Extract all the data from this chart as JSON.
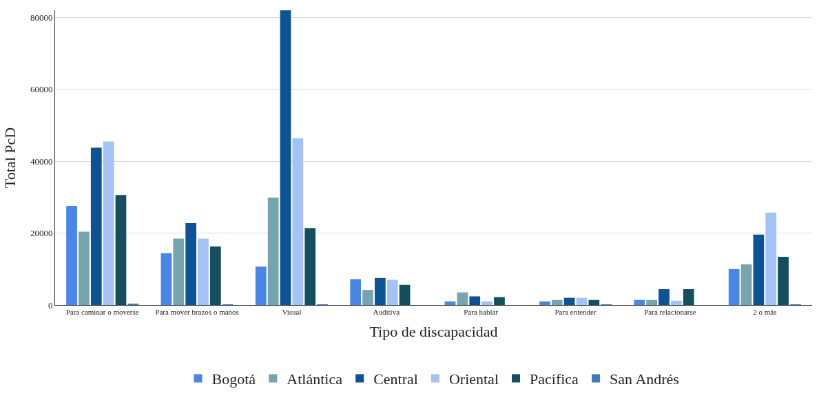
{
  "chart_data": {
    "type": "bar",
    "xlabel": "Tipo de discapacidad",
    "ylabel": "Total PcD",
    "categories": [
      "Para caminar o moverse",
      "Para mover brazos o manos",
      "Visual",
      "Auditiva",
      "Para hablar",
      "Para entender",
      "Para relacionarse",
      "2 o más"
    ],
    "series": [
      {
        "name": "Bogotá",
        "color": "#4a86e8",
        "values": [
          27600,
          14400,
          10700,
          7200,
          1000,
          1000,
          1400,
          10000
        ]
      },
      {
        "name": "Atlántica",
        "color": "#76a5af",
        "values": [
          20400,
          18500,
          29900,
          4200,
          3500,
          1400,
          1400,
          11300
        ]
      },
      {
        "name": "Central",
        "color": "#0b5394",
        "values": [
          43800,
          22800,
          82000,
          7500,
          2400,
          2000,
          4400,
          19600
        ]
      },
      {
        "name": "Oriental",
        "color": "#a4c2f4",
        "values": [
          45500,
          18500,
          46400,
          7000,
          1000,
          2000,
          1200,
          25700
        ]
      },
      {
        "name": "Pacífica",
        "color": "#134f5c",
        "values": [
          30600,
          16300,
          21400,
          5600,
          2200,
          1400,
          4400,
          13400
        ]
      },
      {
        "name": "San Andrés",
        "color": "#3d78c0",
        "values": [
          350,
          100,
          100,
          0,
          0,
          100,
          0,
          100
        ]
      }
    ],
    "ylim": [
      0,
      82000
    ],
    "yticks": [
      0,
      20000,
      40000,
      60000,
      80000
    ],
    "grid": "y",
    "legend": "bottom"
  }
}
